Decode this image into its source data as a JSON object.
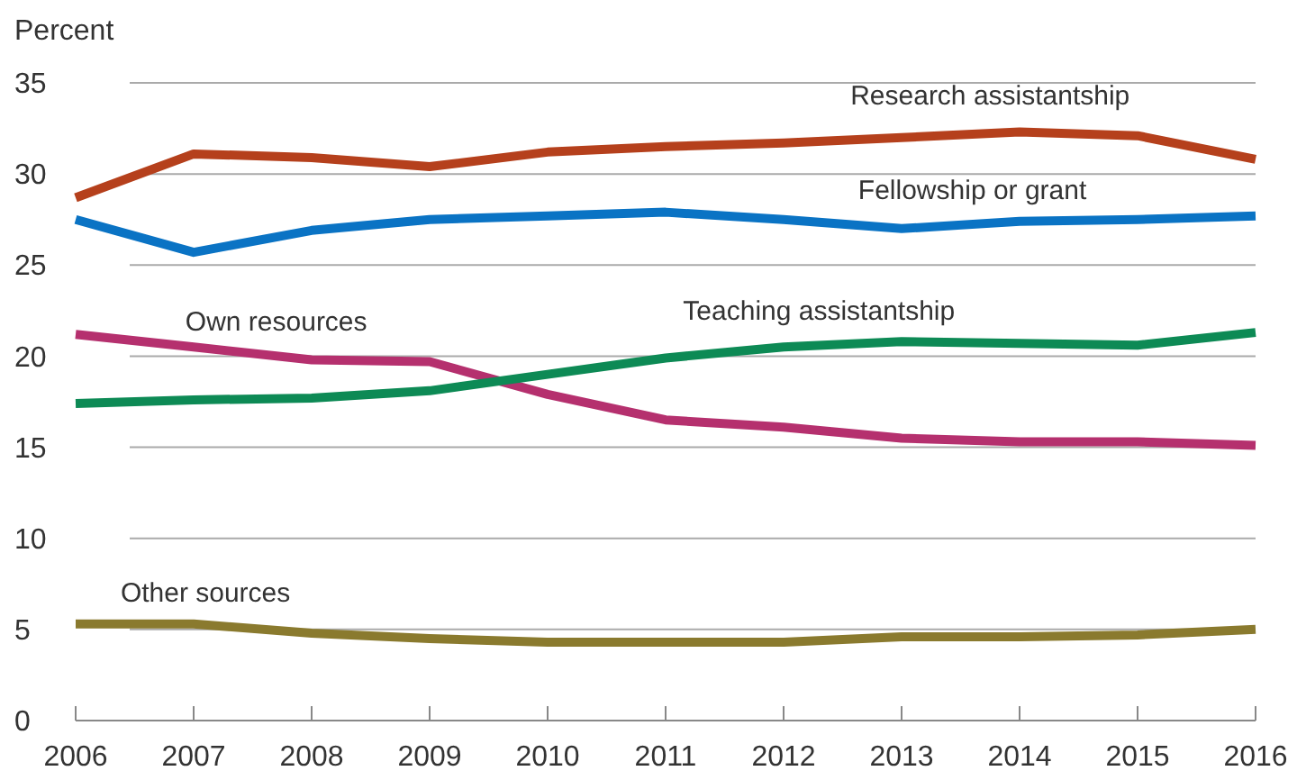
{
  "chart_data": {
    "type": "line",
    "ylabel": "Percent",
    "x": [
      2006,
      2007,
      2008,
      2009,
      2010,
      2011,
      2012,
      2013,
      2014,
      2015,
      2016
    ],
    "xlim": [
      2006,
      2016
    ],
    "xticks": [
      2006,
      2007,
      2008,
      2009,
      2010,
      2011,
      2012,
      2013,
      2014,
      2015,
      2016
    ],
    "ylim": [
      0,
      35
    ],
    "yticks": [
      0,
      5,
      10,
      15,
      20,
      25,
      30,
      35
    ],
    "grid": "y",
    "marker": "none",
    "line_style": "solid",
    "series": [
      {
        "name": "Research assistantship",
        "color": "#b5401c",
        "values": [
          28.7,
          31.1,
          30.9,
          30.4,
          31.2,
          31.5,
          31.7,
          32.0,
          32.3,
          32.1,
          30.8
        ]
      },
      {
        "name": "Fellowship or grant",
        "color": "#0a73c4",
        "values": [
          27.5,
          25.7,
          26.9,
          27.5,
          27.7,
          27.9,
          27.5,
          27.0,
          27.4,
          27.5,
          27.7
        ]
      },
      {
        "name": "Own resources",
        "color": "#b5306e",
        "values": [
          21.2,
          20.5,
          19.8,
          19.7,
          17.9,
          16.5,
          16.1,
          15.5,
          15.3,
          15.3,
          15.1
        ]
      },
      {
        "name": "Teaching assistantship",
        "color": "#0d8a55",
        "values": [
          17.4,
          17.6,
          17.7,
          18.1,
          19.0,
          19.9,
          20.5,
          20.8,
          20.7,
          20.6,
          21.3
        ]
      },
      {
        "name": "Other sources",
        "color": "#8a7a2e",
        "values": [
          5.3,
          5.3,
          4.8,
          4.5,
          4.3,
          4.3,
          4.3,
          4.6,
          4.6,
          4.7,
          5.0
        ]
      }
    ]
  }
}
